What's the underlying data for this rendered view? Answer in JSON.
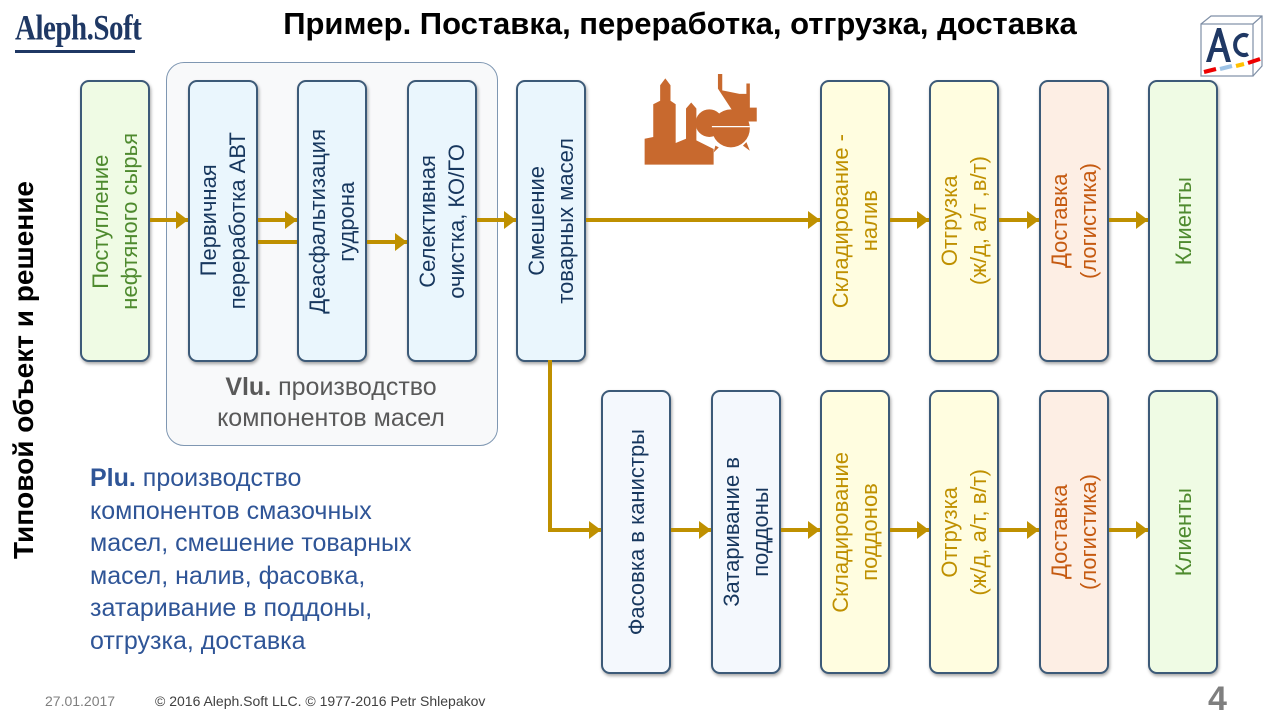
{
  "logo": {
    "text": "Aleph.Soft"
  },
  "corner_logo": {
    "text": "Ac"
  },
  "title": "Пример. Поставка, переработка, отгрузка, доставка",
  "side_title": "Типовой объект и решение",
  "group": {
    "label_bold": "Vlu.",
    "label": " производство компонентов масел"
  },
  "row1": [
    {
      "label": "Поступление\nнефтяного сырья",
      "color": "green"
    },
    {
      "label": "Первичная\nпереработка  АВТ",
      "color": "blue"
    },
    {
      "label": "Деасфальтизация\nгудрона",
      "color": "blue"
    },
    {
      "label": "Селективная\nочистка, КО/ГО",
      "color": "blue"
    },
    {
      "label": "Смешение\nтоварных масел",
      "color": "blue"
    },
    {
      "label": "Складирование -\nналив",
      "color": "yellow"
    },
    {
      "label": "Отгрузка\n(ж/д, а/т ,в/т)",
      "color": "yellow"
    },
    {
      "label": "Доставка\n(логистика)",
      "color": "peach"
    },
    {
      "label": "Клиенты",
      "color": "green"
    }
  ],
  "row2": [
    {
      "label": "Фасовка  в канистры",
      "color": "white"
    },
    {
      "label": "Затаривание в\nподдоны",
      "color": "white"
    },
    {
      "label": "Складирование\nподдонов",
      "color": "yellow"
    },
    {
      "label": "Отгрузка\n(ж/д, а/т, в/т)",
      "color": "yellow"
    },
    {
      "label": "Доставка\n(логистика)",
      "color": "peach"
    },
    {
      "label": "Клиенты",
      "color": "green"
    }
  ],
  "plu": {
    "bold": "Plu.",
    "text": " производство\nкомпонентов смазочных\nмасел, смешение товарных\nмасел, налив, фасовка,\nзатаривание в поддоны,\nотгрузка, доставка"
  },
  "footer": {
    "date": "27.01.2017",
    "copyright": "© 2016 Aleph.Soft LLC.  © 1977-2016 Petr Shlepakov",
    "page": "4"
  },
  "colors": {
    "arrow": "#bf9000",
    "icon": "#c55a11",
    "border": "#3c5a78"
  },
  "icons": {
    "plant": "refinery-icon"
  }
}
